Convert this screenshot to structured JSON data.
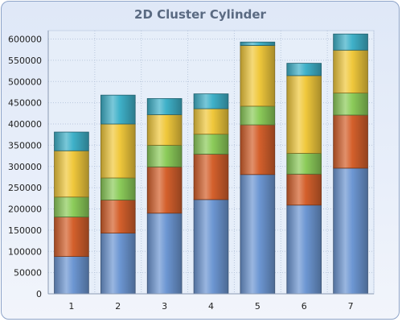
{
  "chart_data": {
    "type": "bar",
    "stacked": true,
    "style": "cylinder",
    "title": "2D Cluster Cylinder",
    "categories": [
      "1",
      "2",
      "3",
      "4",
      "5",
      "6",
      "7"
    ],
    "ylim": [
      0,
      620000
    ],
    "yticks": [
      "0",
      "50000",
      "100000",
      "150000",
      "200000",
      "250000",
      "300000",
      "350000",
      "400000",
      "450000",
      "500000",
      "550000",
      "600000"
    ],
    "grid": true,
    "series": [
      {
        "color": "#6d97d3",
        "values": [
          88000,
          143000,
          190000,
          222000,
          281000,
          209000,
          296000
        ]
      },
      {
        "color": "#d4602c",
        "values": [
          93000,
          78000,
          109000,
          107000,
          117000,
          73000,
          125000
        ]
      },
      {
        "color": "#8ccc5a",
        "values": [
          47000,
          52000,
          51000,
          47000,
          44000,
          49000,
          52000
        ]
      },
      {
        "color": "#f0c83c",
        "values": [
          109000,
          127000,
          72000,
          60000,
          143000,
          183000,
          101000
        ]
      },
      {
        "color": "#3fb1c9",
        "values": [
          44000,
          68000,
          38000,
          35000,
          8000,
          29000,
          38000
        ]
      }
    ]
  }
}
